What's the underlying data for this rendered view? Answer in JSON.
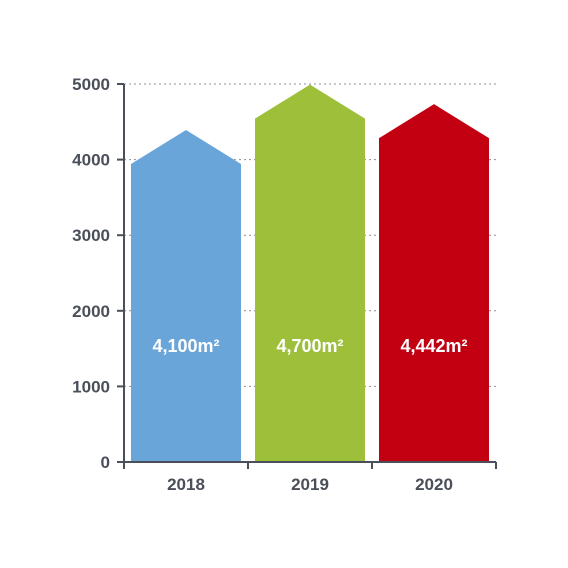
{
  "chart_data": {
    "type": "bar",
    "title": "",
    "xlabel": "",
    "ylabel": "",
    "categories": [
      "2018",
      "2019",
      "2020"
    ],
    "values": [
      4100,
      4700,
      4442
    ],
    "data_labels": [
      "4,100m²",
      "4,700m²",
      "4,442m²"
    ],
    "colors": [
      "#6aa5da",
      "#9dbf3a",
      "#c20012"
    ],
    "ylim": [
      0,
      5000
    ],
    "yticks": [
      0,
      1000,
      2000,
      3000,
      4000,
      5000
    ],
    "ytick_labels": [
      "0",
      "1000",
      "2000",
      "3000",
      "4000",
      "5000"
    ],
    "bar_shape": "arrow-up",
    "grid": true
  }
}
